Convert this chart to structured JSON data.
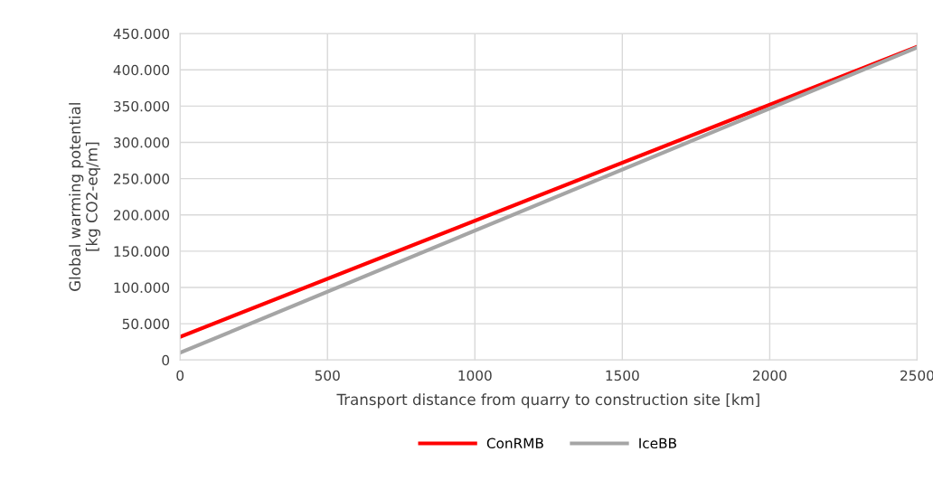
{
  "chart_data": {
    "type": "line",
    "xlabel": "Transport distance from quarry to construction site [km]",
    "ylabel": "Global warming potential\n[kg CO2-eq/m]",
    "x": [
      0,
      2500
    ],
    "series": [
      {
        "name": "ConRMB",
        "color": "#ff0000",
        "values": [
          32000,
          432000
        ]
      },
      {
        "name": "IceBB",
        "color": "#a5a5a5",
        "values": [
          10000,
          431000
        ]
      }
    ],
    "xlim": [
      0,
      2500
    ],
    "xticks": [
      0,
      500,
      1000,
      1500,
      2000,
      2500
    ],
    "ylim": [
      0,
      450000
    ],
    "yticks": [
      0,
      {
        "value": 50000,
        "label": "50.000"
      },
      {
        "value": 100000,
        "label": "100.000"
      },
      {
        "value": 150000,
        "label": "150.000"
      },
      {
        "value": 200000,
        "label": "200.000"
      },
      {
        "value": 250000,
        "label": "250.000"
      },
      {
        "value": 300000,
        "label": "300.000"
      },
      {
        "value": 350000,
        "label": "350.000"
      },
      {
        "value": 400000,
        "label": "400.000"
      },
      {
        "value": 450000,
        "label": "450.000"
      }
    ],
    "grid": true,
    "legend": "bottom",
    "marker": "none",
    "line_style": "solid"
  }
}
